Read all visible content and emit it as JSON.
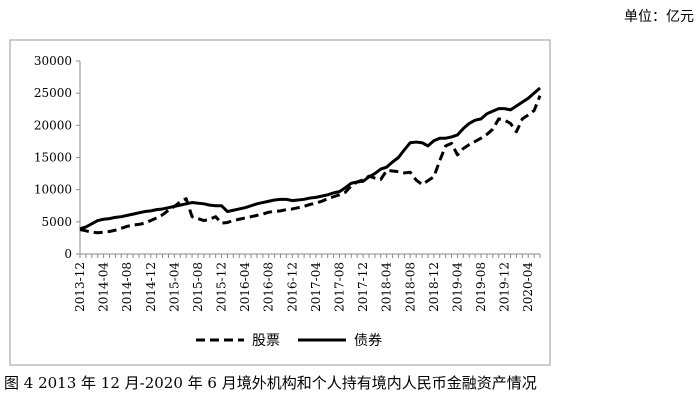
{
  "unit_note": "单位：亿元",
  "caption": "图 4 2013 年 12 月-2020 年 6 月境外机构和个人持有境内人民币金融资产情况",
  "chart_data": {
    "type": "line",
    "title": "",
    "xlabel": "",
    "ylabel": "",
    "ylim": [
      0,
      30000
    ],
    "yticks": [
      0,
      5000,
      10000,
      15000,
      20000,
      25000,
      30000
    ],
    "xtick_labels": [
      "2013-12",
      "2014-04",
      "2014-08",
      "2014-12",
      "2015-04",
      "2015-08",
      "2015-12",
      "2016-04",
      "2016-08",
      "2016-12",
      "2017-04",
      "2017-08",
      "2017-12",
      "2018-04",
      "2018-08",
      "2018-12",
      "2019-04",
      "2019-08",
      "2019-12",
      "2020-04"
    ],
    "x": [
      "2013-12",
      "2014-01",
      "2014-02",
      "2014-03",
      "2014-04",
      "2014-05",
      "2014-06",
      "2014-07",
      "2014-08",
      "2014-09",
      "2014-10",
      "2014-11",
      "2014-12",
      "2015-01",
      "2015-02",
      "2015-03",
      "2015-04",
      "2015-05",
      "2015-06",
      "2015-07",
      "2015-08",
      "2015-09",
      "2015-10",
      "2015-11",
      "2015-12",
      "2016-01",
      "2016-02",
      "2016-03",
      "2016-04",
      "2016-05",
      "2016-06",
      "2016-07",
      "2016-08",
      "2016-09",
      "2016-10",
      "2016-11",
      "2016-12",
      "2017-01",
      "2017-02",
      "2017-03",
      "2017-04",
      "2017-05",
      "2017-06",
      "2017-07",
      "2017-08",
      "2017-09",
      "2017-10",
      "2017-11",
      "2017-12",
      "2018-01",
      "2018-02",
      "2018-03",
      "2018-04",
      "2018-05",
      "2018-06",
      "2018-07",
      "2018-08",
      "2018-09",
      "2018-10",
      "2018-11",
      "2018-12",
      "2019-01",
      "2019-02",
      "2019-03",
      "2019-04",
      "2019-05",
      "2019-06",
      "2019-07",
      "2019-08",
      "2019-09",
      "2019-10",
      "2019-11",
      "2019-12",
      "2020-01",
      "2020-02",
      "2020-03",
      "2020-04",
      "2020-05",
      "2020-06"
    ],
    "series": [
      {
        "name": "股票",
        "style": "dashed",
        "color": "#000000",
        "values": [
          3800,
          3600,
          3400,
          3300,
          3400,
          3500,
          3700,
          4000,
          4300,
          4500,
          4600,
          4800,
          5200,
          5600,
          6100,
          6800,
          7400,
          8100,
          8600,
          5800,
          5500,
          5200,
          5400,
          5800,
          4800,
          4900,
          5200,
          5400,
          5600,
          5800,
          6000,
          6200,
          6500,
          6600,
          6700,
          6900,
          7000,
          7200,
          7400,
          7700,
          7900,
          8200,
          8600,
          8900,
          9200,
          9600,
          10600,
          11200,
          11500,
          12100,
          11800,
          11600,
          13000,
          12900,
          12800,
          12600,
          12700,
          11500,
          10800,
          11400,
          12000,
          14500,
          16800,
          17200,
          15400,
          16400,
          17000,
          17500,
          18000,
          18600,
          19400,
          21000,
          20800,
          20300,
          19000,
          21000,
          21600,
          22300,
          24600
        ]
      },
      {
        "name": "债券",
        "style": "solid",
        "color": "#000000",
        "values": [
          3900,
          4200,
          4700,
          5200,
          5400,
          5500,
          5700,
          5800,
          6000,
          6200,
          6400,
          6600,
          6700,
          6900,
          7000,
          7200,
          7400,
          7600,
          7800,
          8000,
          7900,
          7800,
          7600,
          7500,
          7500,
          6600,
          6800,
          7000,
          7200,
          7500,
          7800,
          8000,
          8200,
          8400,
          8500,
          8500,
          8300,
          8400,
          8500,
          8700,
          8800,
          9000,
          9200,
          9500,
          9700,
          10300,
          11000,
          11200,
          11300,
          12000,
          12500,
          13200,
          13500,
          14300,
          15000,
          16200,
          17300,
          17400,
          17300,
          16800,
          17600,
          18000,
          18000,
          18200,
          18500,
          19500,
          20300,
          20800,
          21000,
          21800,
          22200,
          22600,
          22600,
          22400,
          23000,
          23600,
          24200,
          25000,
          25800
        ]
      }
    ],
    "legend_position": "bottom",
    "grid": false
  }
}
